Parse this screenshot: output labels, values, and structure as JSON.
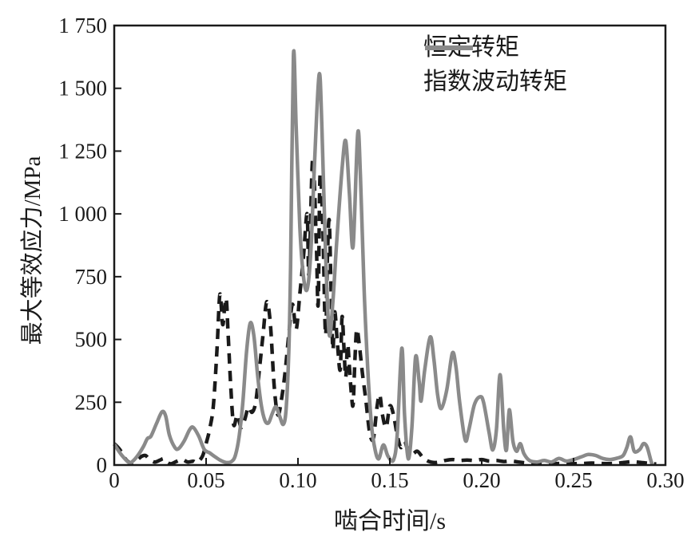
{
  "figure": {
    "background": "#ffffff",
    "frame_color": "#1a1a1a"
  },
  "axes": {
    "x_title": "啮合时间/s",
    "y_title": "最大等效应力/MPa"
  },
  "legend": {
    "items": [
      {
        "label": "恒定转矩",
        "line_style": "dashed",
        "color": "#1a1a1a"
      },
      {
        "label": "指数波动转矩",
        "line_style": "solid",
        "color": "#8a8a8a"
      }
    ]
  },
  "chart_data": {
    "type": "line",
    "title": "",
    "xlabel": "啮合时间/s",
    "ylabel": "最大等效应力/MPa",
    "xlim": [
      0,
      0.3
    ],
    "ylim": [
      0,
      1750
    ],
    "x_tick_values": [
      0,
      0.05,
      0.1,
      0.15,
      0.2,
      0.25,
      0.3
    ],
    "x_tick_labels": [
      "0",
      "0.05",
      "0.10",
      "0.15",
      "0.20",
      "0.25",
      "0.30"
    ],
    "y_tick_values": [
      0,
      250,
      500,
      750,
      1000,
      1250,
      1500,
      1750
    ],
    "y_tick_labels": [
      "0",
      "250",
      "500",
      "750",
      "1 000",
      "1 250",
      "1 500",
      "1 750"
    ],
    "grid": false,
    "legend_position": "inside-top-right",
    "series": [
      {
        "name": "恒定转矩",
        "line_style": "dashed",
        "color": "#1a1a1a",
        "points": [
          [
            0,
            85
          ],
          [
            0.003,
            62
          ],
          [
            0.006,
            25
          ],
          [
            0.009,
            8
          ],
          [
            0.012,
            18
          ],
          [
            0.015,
            35
          ],
          [
            0.017,
            38
          ],
          [
            0.019,
            25
          ],
          [
            0.022,
            12
          ],
          [
            0.025,
            20
          ],
          [
            0.027,
            25
          ],
          [
            0.029,
            10
          ],
          [
            0.031,
            5
          ],
          [
            0.034,
            15
          ],
          [
            0.037,
            22
          ],
          [
            0.04,
            12
          ],
          [
            0.043,
            15
          ],
          [
            0.045,
            10
          ],
          [
            0.048,
            35
          ],
          [
            0.05,
            85
          ],
          [
            0.052,
            145
          ],
          [
            0.054,
            240
          ],
          [
            0.056,
            470
          ],
          [
            0.0575,
            680
          ],
          [
            0.059,
            560
          ],
          [
            0.06,
            620
          ],
          [
            0.061,
            660
          ],
          [
            0.062,
            520
          ],
          [
            0.0635,
            300
          ],
          [
            0.065,
            160
          ],
          [
            0.067,
            200
          ],
          [
            0.069,
            150
          ],
          [
            0.071,
            180
          ],
          [
            0.073,
            230
          ],
          [
            0.075,
            210
          ],
          [
            0.077,
            250
          ],
          [
            0.079,
            380
          ],
          [
            0.081,
            520
          ],
          [
            0.083,
            650
          ],
          [
            0.085,
            560
          ],
          [
            0.087,
            320
          ],
          [
            0.089,
            200
          ],
          [
            0.091,
            260
          ],
          [
            0.093,
            370
          ],
          [
            0.095,
            520
          ],
          [
            0.097,
            640
          ],
          [
            0.099,
            540
          ],
          [
            0.101,
            680
          ],
          [
            0.103,
            830
          ],
          [
            0.105,
            1000
          ],
          [
            0.106,
            760
          ],
          [
            0.108,
            1220
          ],
          [
            0.11,
            880
          ],
          [
            0.111,
            640
          ],
          [
            0.112,
            1150
          ],
          [
            0.1135,
            950
          ],
          [
            0.115,
            520
          ],
          [
            0.116,
            820
          ],
          [
            0.117,
            975
          ],
          [
            0.118,
            700
          ],
          [
            0.119,
            460
          ],
          [
            0.12,
            610
          ],
          [
            0.1215,
            480
          ],
          [
            0.123,
            380
          ],
          [
            0.124,
            590
          ],
          [
            0.125,
            470
          ],
          [
            0.126,
            350
          ],
          [
            0.127,
            480
          ],
          [
            0.128,
            390
          ],
          [
            0.129,
            290
          ],
          [
            0.13,
            240
          ],
          [
            0.131,
            420
          ],
          [
            0.132,
            540
          ],
          [
            0.1335,
            470
          ],
          [
            0.135,
            370
          ],
          [
            0.137,
            255
          ],
          [
            0.139,
            130
          ],
          [
            0.141,
            105
          ],
          [
            0.143,
            230
          ],
          [
            0.1445,
            280
          ],
          [
            0.146,
            200
          ],
          [
            0.148,
            150
          ],
          [
            0.15,
            235
          ],
          [
            0.152,
            200
          ],
          [
            0.154,
            120
          ],
          [
            0.156,
            70
          ],
          [
            0.158,
            95
          ],
          [
            0.16,
            55
          ],
          [
            0.1625,
            45
          ],
          [
            0.165,
            55
          ],
          [
            0.168,
            30
          ],
          [
            0.171,
            15
          ],
          [
            0.174,
            10
          ],
          [
            0.177,
            12
          ],
          [
            0.18,
            18
          ],
          [
            0.184,
            22
          ],
          [
            0.188,
            18
          ],
          [
            0.192,
            20
          ],
          [
            0.196,
            18
          ],
          [
            0.2,
            22
          ],
          [
            0.204,
            16
          ],
          [
            0.208,
            18
          ],
          [
            0.212,
            14
          ],
          [
            0.216,
            16
          ],
          [
            0.22,
            12
          ],
          [
            0.225,
            8
          ],
          [
            0.23,
            6
          ],
          [
            0.236,
            5
          ],
          [
            0.242,
            6
          ],
          [
            0.248,
            5
          ],
          [
            0.254,
            6
          ],
          [
            0.26,
            8
          ],
          [
            0.266,
            6
          ],
          [
            0.272,
            6
          ],
          [
            0.277,
            10
          ],
          [
            0.282,
            13
          ],
          [
            0.287,
            10
          ],
          [
            0.292,
            6
          ],
          [
            0.295,
            4
          ]
        ]
      },
      {
        "name": "指数波动转矩",
        "line_style": "solid",
        "color": "#8a8a8a",
        "points": [
          [
            0,
            83
          ],
          [
            0.004,
            40
          ],
          [
            0.008,
            10
          ],
          [
            0.01,
            15
          ],
          [
            0.013,
            40
          ],
          [
            0.016,
            75
          ],
          [
            0.018,
            105
          ],
          [
            0.02,
            115
          ],
          [
            0.023,
            165
          ],
          [
            0.026,
            212
          ],
          [
            0.028,
            195
          ],
          [
            0.03,
            120
          ],
          [
            0.033,
            70
          ],
          [
            0.035,
            65
          ],
          [
            0.038,
            95
          ],
          [
            0.041,
            140
          ],
          [
            0.043,
            150
          ],
          [
            0.046,
            115
          ],
          [
            0.049,
            62
          ],
          [
            0.052,
            48
          ],
          [
            0.055,
            32
          ],
          [
            0.058,
            18
          ],
          [
            0.061,
            10
          ],
          [
            0.064,
            15
          ],
          [
            0.066,
            40
          ],
          [
            0.068,
            115
          ],
          [
            0.07,
            250
          ],
          [
            0.072,
            450
          ],
          [
            0.074,
            565
          ],
          [
            0.076,
            515
          ],
          [
            0.078,
            360
          ],
          [
            0.08,
            240
          ],
          [
            0.082,
            178
          ],
          [
            0.084,
            168
          ],
          [
            0.086,
            205
          ],
          [
            0.088,
            232
          ],
          [
            0.09,
            195
          ],
          [
            0.092,
            162
          ],
          [
            0.0935,
            220
          ],
          [
            0.095,
            450
          ],
          [
            0.096,
            800
          ],
          [
            0.0975,
            1630
          ],
          [
            0.099,
            1350
          ],
          [
            0.101,
            950
          ],
          [
            0.103,
            750
          ],
          [
            0.105,
            700
          ],
          [
            0.107,
            850
          ],
          [
            0.109,
            1200
          ],
          [
            0.1115,
            1555
          ],
          [
            0.113,
            1350
          ],
          [
            0.115,
            850
          ],
          [
            0.117,
            520
          ],
          [
            0.119,
            650
          ],
          [
            0.121,
            880
          ],
          [
            0.124,
            1180
          ],
          [
            0.126,
            1290
          ],
          [
            0.128,
            1080
          ],
          [
            0.13,
            870
          ],
          [
            0.1325,
            1320
          ],
          [
            0.134,
            1150
          ],
          [
            0.136,
            700
          ],
          [
            0.138,
            380
          ],
          [
            0.14,
            160
          ],
          [
            0.142,
            60
          ],
          [
            0.144,
            25
          ],
          [
            0.1465,
            80
          ],
          [
            0.149,
            35
          ],
          [
            0.152,
            20
          ],
          [
            0.154,
            120
          ],
          [
            0.1565,
            465
          ],
          [
            0.158,
            200
          ],
          [
            0.16,
            25
          ],
          [
            0.162,
            150
          ],
          [
            0.164,
            430
          ],
          [
            0.166,
            330
          ],
          [
            0.167,
            255
          ],
          [
            0.169,
            380
          ],
          [
            0.172,
            510
          ],
          [
            0.174,
            420
          ],
          [
            0.176,
            280
          ],
          [
            0.178,
            225
          ],
          [
            0.181,
            300
          ],
          [
            0.184,
            445
          ],
          [
            0.186,
            390
          ],
          [
            0.188,
            250
          ],
          [
            0.191,
            100
          ],
          [
            0.193,
            140
          ],
          [
            0.196,
            240
          ],
          [
            0.199,
            272
          ],
          [
            0.201,
            250
          ],
          [
            0.204,
            130
          ],
          [
            0.206,
            60
          ],
          [
            0.208,
            140
          ],
          [
            0.21,
            360
          ],
          [
            0.212,
            140
          ],
          [
            0.2135,
            60
          ],
          [
            0.215,
            220
          ],
          [
            0.217,
            95
          ],
          [
            0.219,
            55
          ],
          [
            0.221,
            85
          ],
          [
            0.223,
            45
          ],
          [
            0.226,
            18
          ],
          [
            0.23,
            12
          ],
          [
            0.234,
            18
          ],
          [
            0.238,
            12
          ],
          [
            0.242,
            26
          ],
          [
            0.246,
            16
          ],
          [
            0.25,
            22
          ],
          [
            0.254,
            32
          ],
          [
            0.258,
            42
          ],
          [
            0.262,
            38
          ],
          [
            0.266,
            26
          ],
          [
            0.27,
            22
          ],
          [
            0.274,
            28
          ],
          [
            0.277,
            38
          ],
          [
            0.279,
            70
          ],
          [
            0.281,
            112
          ],
          [
            0.283,
            55
          ],
          [
            0.286,
            62
          ],
          [
            0.288,
            85
          ],
          [
            0.29,
            72
          ],
          [
            0.292,
            20
          ],
          [
            0.293,
            0
          ]
        ]
      }
    ]
  }
}
